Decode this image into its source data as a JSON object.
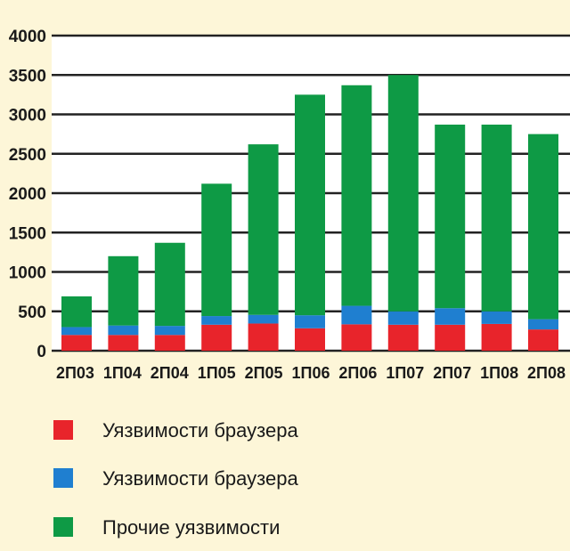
{
  "chart_data": {
    "type": "bar",
    "stacked": true,
    "categories": [
      "2П03",
      "1П04",
      "2П04",
      "1П05",
      "2П05",
      "1П06",
      "2П06",
      "1П07",
      "2П07",
      "1П08",
      "2П08"
    ],
    "series": [
      {
        "name": "Уязвимости браузера",
        "color": "#e8242b",
        "values": [
          200,
          200,
          200,
          330,
          345,
          285,
          335,
          330,
          330,
          340,
          270
        ]
      },
      {
        "name": "Уязвимости браузера",
        "color": "#1f7fd0",
        "values": [
          100,
          120,
          115,
          110,
          110,
          165,
          235,
          170,
          210,
          160,
          130
        ]
      },
      {
        "name": "Прочие уязвимости",
        "color": "#0e9a45",
        "values": [
          390,
          880,
          1055,
          1680,
          2165,
          2800,
          2800,
          3000,
          2330,
          2370,
          2350
        ]
      }
    ],
    "ylim": [
      0,
      4000
    ],
    "yticks": [
      0,
      500,
      1000,
      1500,
      2000,
      2500,
      3000,
      3500,
      4000
    ],
    "grid": true,
    "legend_position": "bottom-left"
  }
}
